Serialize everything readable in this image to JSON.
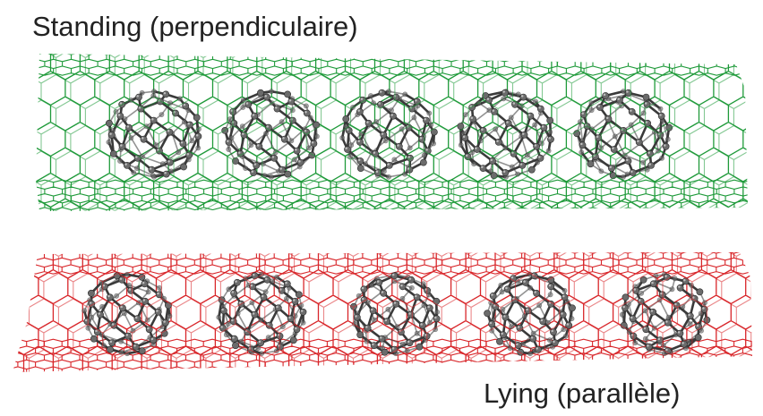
{
  "labels": {
    "top": "Standing (perpendiculaire)",
    "bottom": "Lying (parallèle)"
  },
  "tubes": [
    {
      "name": "standing",
      "color": "#1f9a3a",
      "fullerene_count": 5
    },
    {
      "name": "lying",
      "color": "#d8262a",
      "fullerene_count": 5
    }
  ],
  "fullerene": {
    "atom_color": "#6b6b6b",
    "bond_color": "#3a3a3a"
  }
}
